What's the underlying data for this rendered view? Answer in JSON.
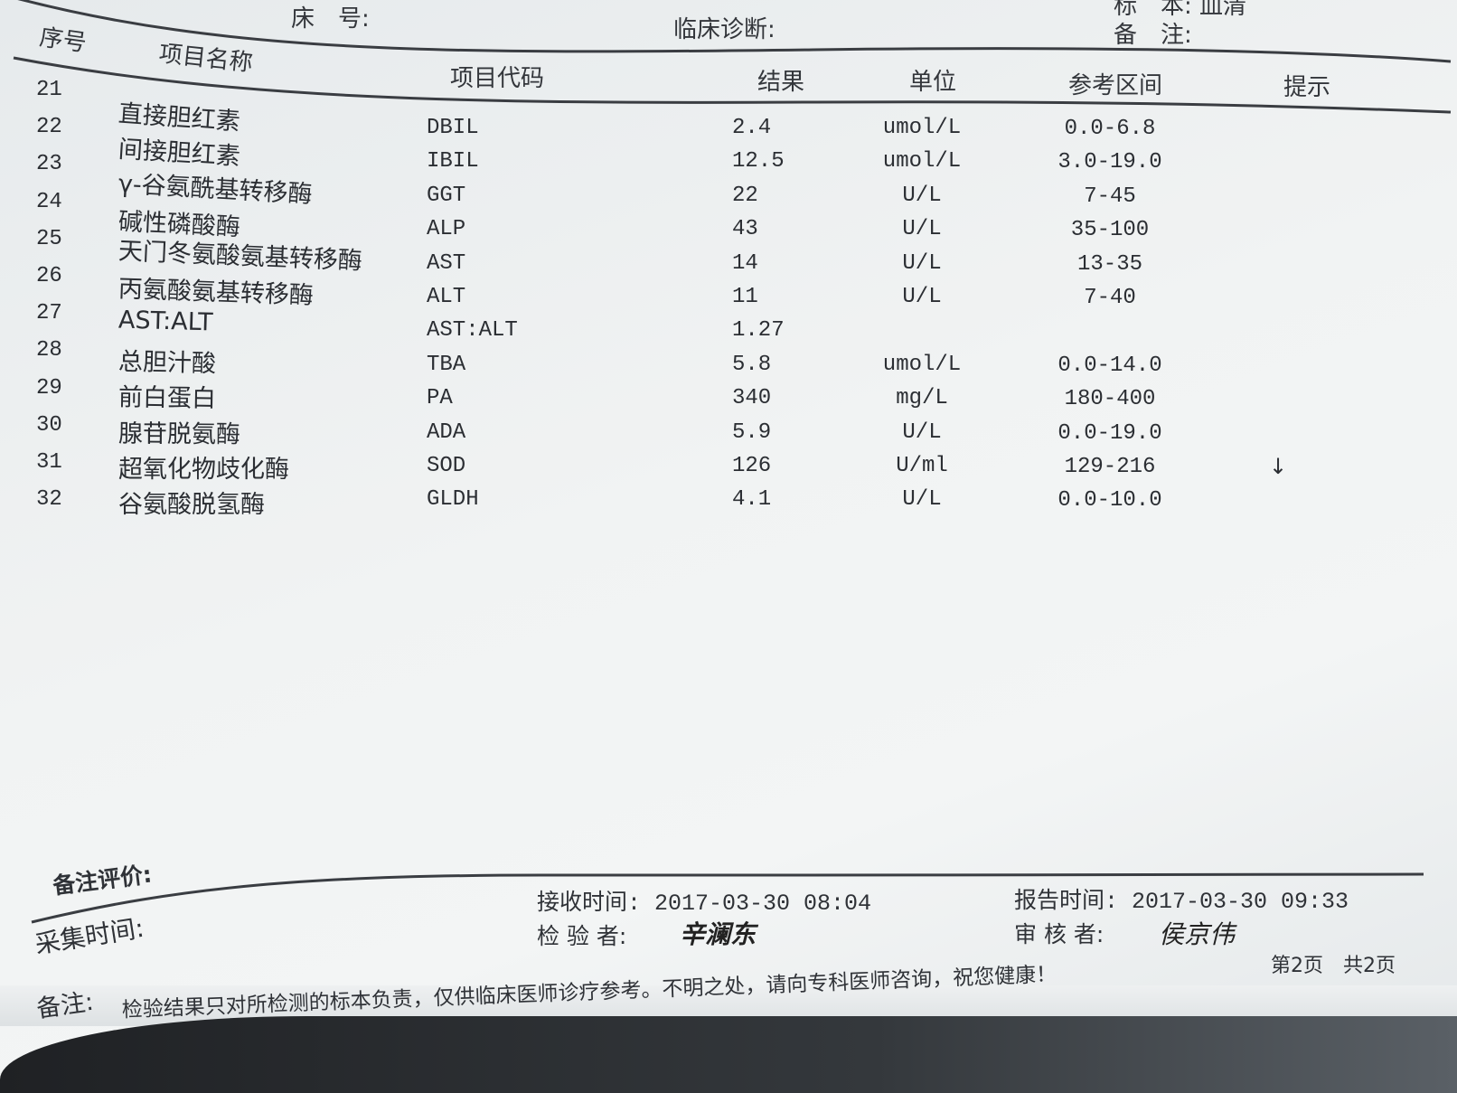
{
  "header_fields": {
    "bed_label": "床　号:",
    "diagnosis_label": "临床诊断:",
    "specimen_label": "标　本:",
    "specimen_value": "血清",
    "remark_label": "备　注:"
  },
  "table": {
    "columns": {
      "seq": "序号",
      "name": "项目名称",
      "code": "项目代码",
      "result": "结果",
      "unit": "单位",
      "reference": "参考区间",
      "flag": "提示"
    },
    "rows": [
      {
        "seq": "21",
        "name": "直接胆红素",
        "code": "DBIL",
        "result": "2.4",
        "unit": "umol/L",
        "reference": "0.0-6.8",
        "flag": ""
      },
      {
        "seq": "22",
        "name": "间接胆红素",
        "code": "IBIL",
        "result": "12.5",
        "unit": "umol/L",
        "reference": "3.0-19.0",
        "flag": ""
      },
      {
        "seq": "23",
        "name": "γ-谷氨酰基转移酶",
        "code": "GGT",
        "result": "22",
        "unit": "U/L",
        "reference": "7-45",
        "flag": ""
      },
      {
        "seq": "24",
        "name": "碱性磷酸酶",
        "code": "ALP",
        "result": "43",
        "unit": "U/L",
        "reference": "35-100",
        "flag": ""
      },
      {
        "seq": "25",
        "name": "天门冬氨酸氨基转移酶",
        "code": "AST",
        "result": "14",
        "unit": "U/L",
        "reference": "13-35",
        "flag": ""
      },
      {
        "seq": "26",
        "name": "丙氨酸氨基转移酶",
        "code": "ALT",
        "result": "11",
        "unit": "U/L",
        "reference": "7-40",
        "flag": ""
      },
      {
        "seq": "27",
        "name": "AST:ALT",
        "code": "AST:ALT",
        "result": "1.27",
        "unit": "",
        "reference": "",
        "flag": ""
      },
      {
        "seq": "28",
        "name": "总胆汁酸",
        "code": "TBA",
        "result": "5.8",
        "unit": "umol/L",
        "reference": "0.0-14.0",
        "flag": ""
      },
      {
        "seq": "29",
        "name": "前白蛋白",
        "code": "PA",
        "result": "340",
        "unit": "mg/L",
        "reference": "180-400",
        "flag": ""
      },
      {
        "seq": "30",
        "name": "腺苷脱氨酶",
        "code": "ADA",
        "result": "5.9",
        "unit": "U/L",
        "reference": "0.0-19.0",
        "flag": ""
      },
      {
        "seq": "31",
        "name": "超氧化物歧化酶",
        "code": "SOD",
        "result": "126",
        "unit": "U/ml",
        "reference": "129-216",
        "flag": "↓"
      },
      {
        "seq": "32",
        "name": "谷氨酸脱氢酶",
        "code": "GLDH",
        "result": "4.1",
        "unit": "U/L",
        "reference": "0.0-10.0",
        "flag": ""
      }
    ]
  },
  "footer": {
    "comment_label": "备注评价:",
    "collect_time_label": "采集时间:",
    "receive_time": "接收时间: 2017-03-30 08:04",
    "report_time": "报告时间: 2017-03-30 09:33",
    "tester_label": "检 验 者:",
    "tester_signature": "辛澜东",
    "reviewer_label": "审 核 者:",
    "reviewer_signature": "侯京伟",
    "remark_label": "备注:",
    "disclaimer": "检验结果只对所检测的标本负责，仅供临床医师诊疗参考。不明之处，请向专科医师咨询，祝您健康！",
    "page_info": "第2页　共2页"
  }
}
